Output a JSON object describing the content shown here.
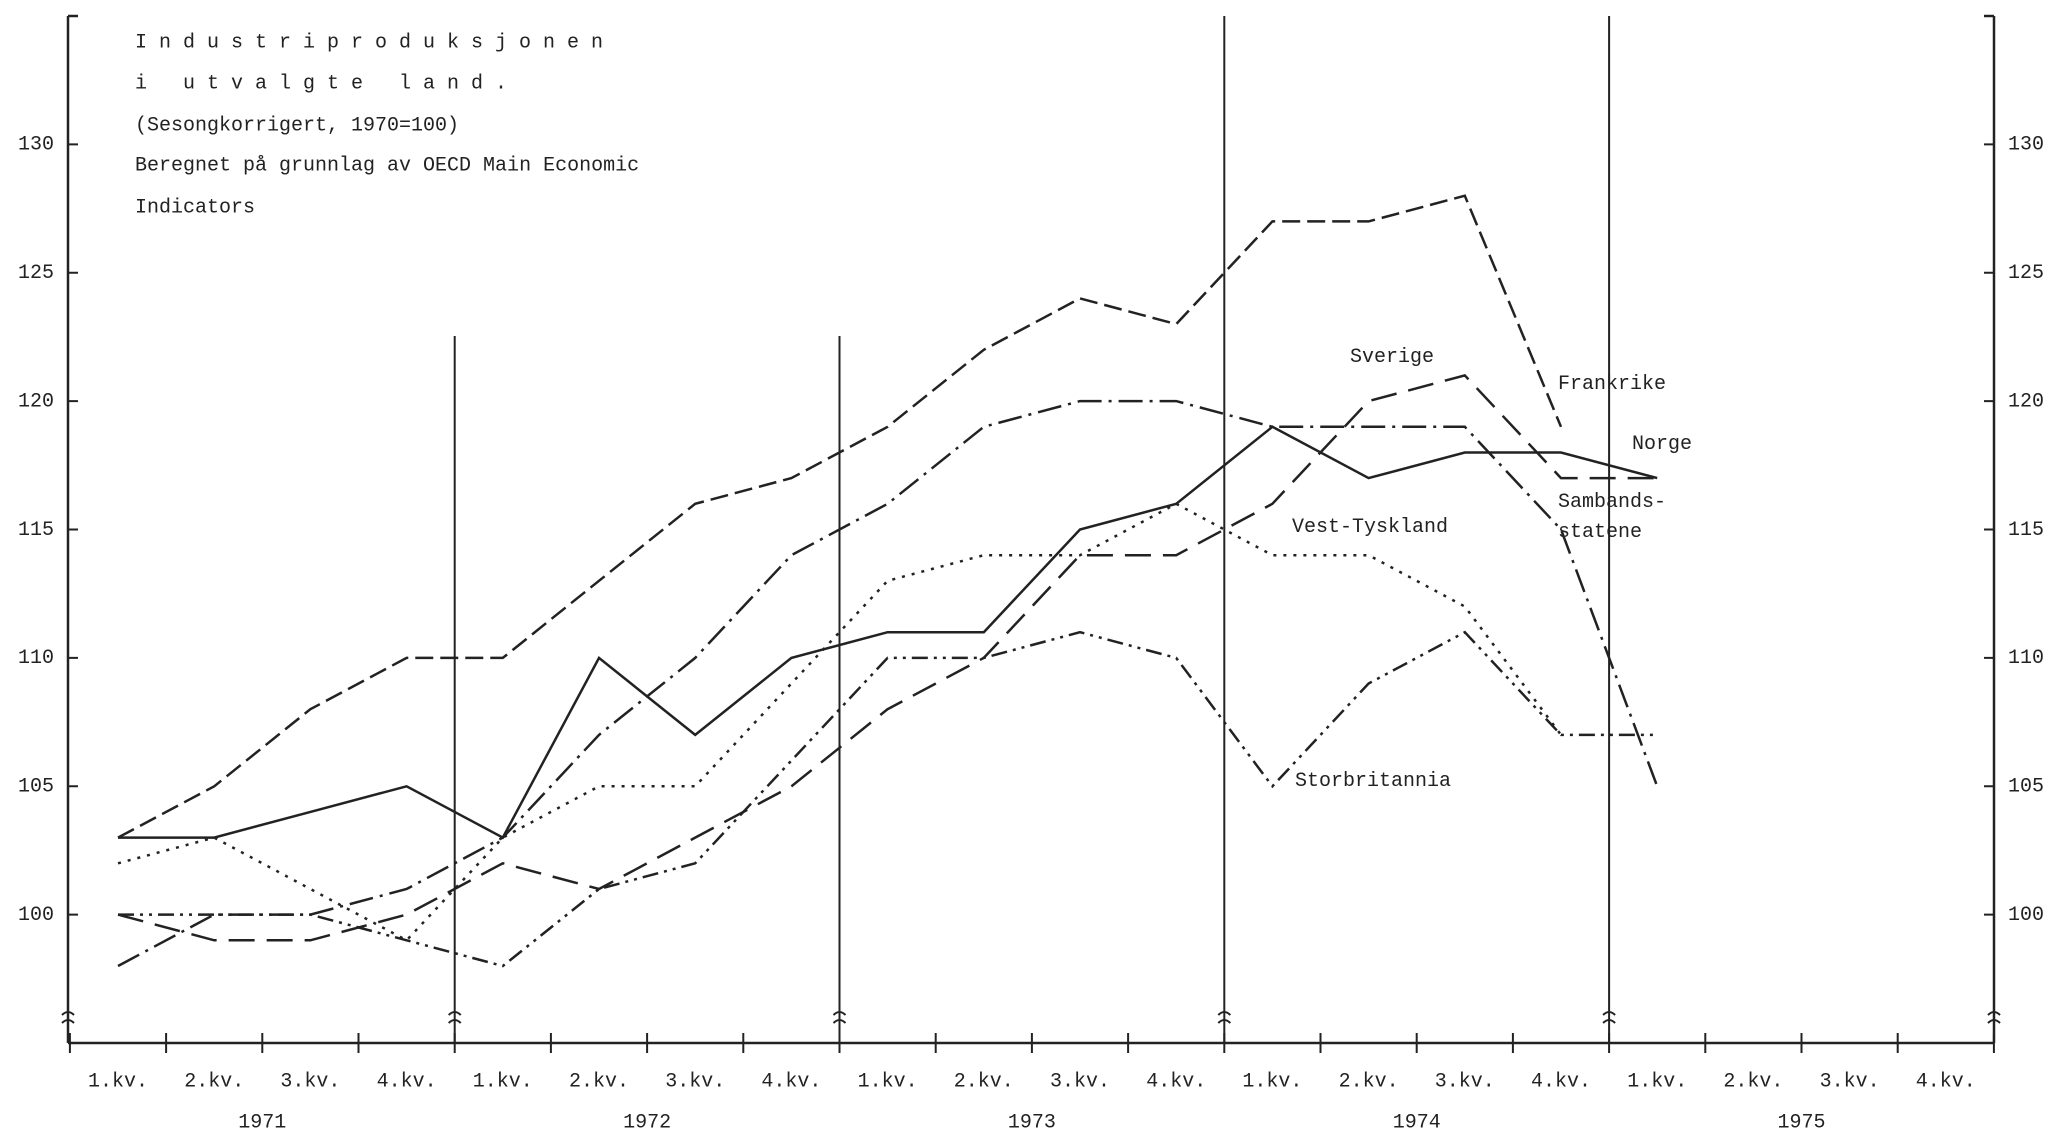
{
  "chart_data": {
    "type": "line",
    "title": [
      "Industriproduksjonen",
      "i utvalgte land."
    ],
    "notes": [
      "(Sesongkorrigert, 1970=100)",
      "Beregnet på grunnlag av OECD Main Economic",
      "Indicators"
    ],
    "categories": [
      "1.kv.",
      "2.kv.",
      "3.kv.",
      "4.kv.",
      "1.kv.",
      "2.kv.",
      "3.kv.",
      "4.kv.",
      "1.kv.",
      "2.kv.",
      "3.kv.",
      "4.kv.",
      "1.kv.",
      "2.kv.",
      "3.kv.",
      "4.kv.",
      "1.kv.",
      "2.kv.",
      "3.kv.",
      "4.kv."
    ],
    "years": [
      "1971",
      "1972",
      "1973",
      "1974",
      "1975"
    ],
    "ylim": [
      95,
      135
    ],
    "yticks": [
      100,
      105,
      110,
      115,
      120,
      125,
      130
    ],
    "color": "#222222",
    "series": [
      {
        "name": "Norge",
        "values": [
          103,
          103,
          104,
          105,
          103,
          110,
          107,
          110,
          111,
          111,
          115,
          116,
          119,
          117,
          118,
          118,
          117,
          null,
          null,
          null
        ]
      },
      {
        "name": "Frankrike",
        "values": [
          103,
          105,
          108,
          110,
          110,
          113,
          116,
          117,
          119,
          122,
          124,
          123,
          127,
          127,
          128,
          119,
          null,
          null,
          null,
          null
        ]
      },
      {
        "name": "Sverige",
        "values": [
          100,
          99,
          99,
          100,
          102,
          101,
          103,
          105,
          108,
          110,
          114,
          114,
          116,
          120,
          121,
          117,
          117,
          null,
          null,
          null
        ]
      },
      {
        "name": "Sambands-\nstatene",
        "values": [
          98,
          100,
          100,
          101,
          103,
          107,
          110,
          114,
          116,
          119,
          120,
          120,
          119,
          119,
          119,
          115,
          105,
          null,
          null,
          null
        ]
      },
      {
        "name": "Vest-Tyskland",
        "values": [
          102,
          103,
          101,
          99,
          103,
          105,
          105,
          109,
          113,
          114,
          114,
          116,
          114,
          114,
          112,
          107,
          null,
          null,
          null,
          null
        ]
      },
      {
        "name": "Storbritannia",
        "values": [
          100,
          100,
          100,
          99,
          98,
          101,
          102,
          106,
          110,
          110,
          111,
          110,
          105,
          109,
          111,
          107,
          107,
          null,
          null,
          null
        ]
      }
    ]
  }
}
